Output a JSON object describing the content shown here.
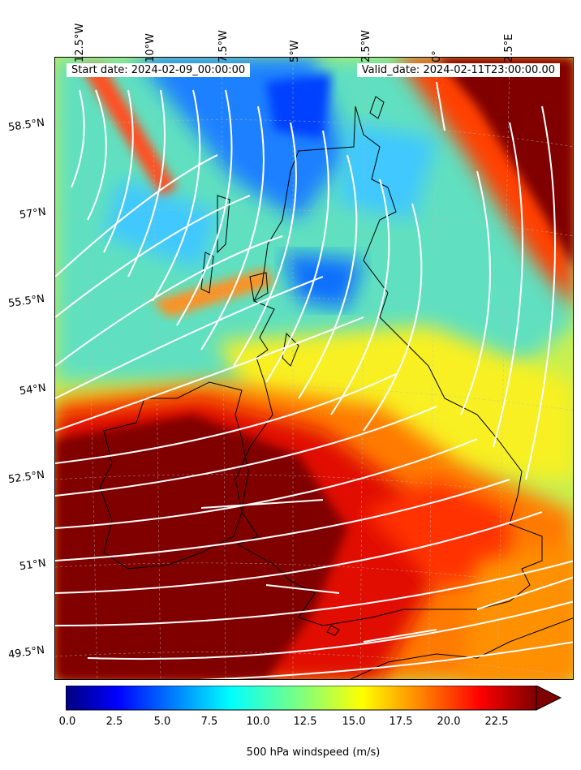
{
  "map": {
    "start_date_label": "Start date: 2024-02-09_00:00:00",
    "valid_date_label": "Valid_date: 2024-02-11T23:00:00.00",
    "longitude_labels": [
      "12.5°W",
      "10°W",
      "7.5°W",
      "5°W",
      "2.5°W",
      "0°",
      "2.5°E"
    ],
    "latitude_labels": [
      "58.5°N",
      "57°N",
      "55.5°N",
      "54°N",
      "52.5°N",
      "51°N",
      "49.5°N"
    ],
    "field": "500 hPa windspeed",
    "streamline_color": "#ffffff",
    "coastline_color": "#000000"
  },
  "colorbar": {
    "title": "500 hPa windspeed (m/s)",
    "ticks": [
      "0.0",
      "2.5",
      "5.0",
      "7.5",
      "10.0",
      "12.5",
      "15.0",
      "17.5",
      "20.0",
      "22.5"
    ],
    "range": [
      0,
      25
    ],
    "extend": "max",
    "colormap": [
      "#00007f",
      "#0000ff",
      "#007fff",
      "#00ffff",
      "#7fff7f",
      "#ffff00",
      "#ff7f00",
      "#ff0000",
      "#7f0000"
    ]
  }
}
